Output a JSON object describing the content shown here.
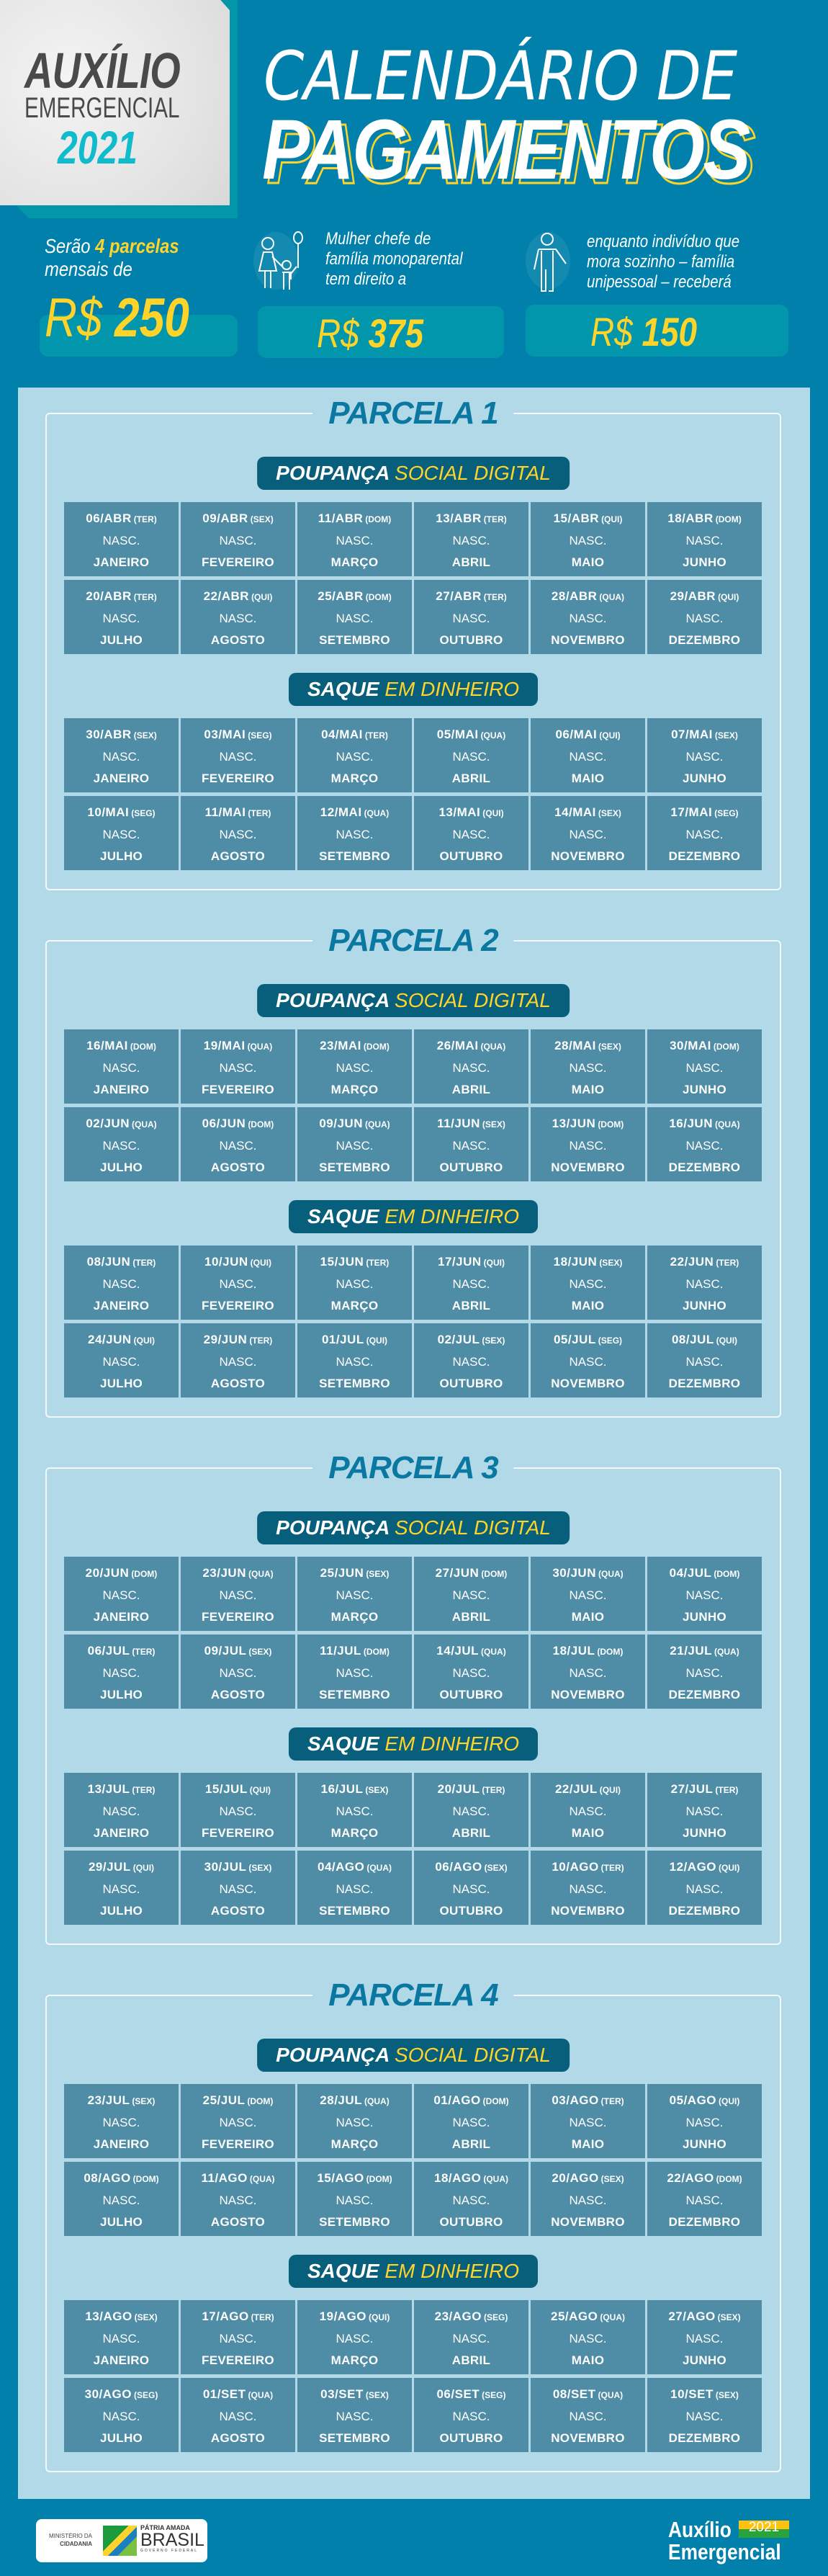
{
  "header": {
    "brand_line1": "AUXÍLIO",
    "brand_line2": "EMERGENCIAL",
    "brand_year": "2021",
    "title_line1": "CALENDÁRIO DE",
    "title_line2": "PAGAMENTOS"
  },
  "summary": {
    "intro_pre": "Serão ",
    "intro_highlight": "4 parcelas",
    "intro_post": "mensais de",
    "main_currency": "R$",
    "main_amount": "250",
    "mother_text": [
      "Mulher chefe de",
      "família monoparental",
      "tem direito a"
    ],
    "mother_currency": "R$",
    "mother_amount": "375",
    "single_text": [
      "enquanto indivíduo que",
      "mora sozinho – família",
      "unipessoal – receberá"
    ],
    "single_currency": "R$",
    "single_amount": "150"
  },
  "labels": {
    "nasc": "NASC.",
    "poupanca_a": "POUPANÇA",
    "poupanca_b": "SOCIAL DIGITAL",
    "saque_a": "SAQUE",
    "saque_b": "EM DINHEIRO"
  },
  "months": [
    "JANEIRO",
    "FEVEREIRO",
    "MARÇO",
    "ABRIL",
    "MAIO",
    "JUNHO",
    "JULHO",
    "AGOSTO",
    "SETEMBRO",
    "OUTUBRO",
    "NOVEMBRO",
    "DEZEMBRO"
  ],
  "parcelas": [
    {
      "title": "PARCELA 1",
      "poupanca": [
        [
          "06/ABR",
          "(TER)"
        ],
        [
          "09/ABR",
          "(SEX)"
        ],
        [
          "11/ABR",
          "(DOM)"
        ],
        [
          "13/ABR",
          "(TER)"
        ],
        [
          "15/ABR",
          "(QUI)"
        ],
        [
          "18/ABR",
          "(DOM)"
        ],
        [
          "20/ABR",
          "(TER)"
        ],
        [
          "22/ABR",
          "(QUI)"
        ],
        [
          "25/ABR",
          "(DOM)"
        ],
        [
          "27/ABR",
          "(TER)"
        ],
        [
          "28/ABR",
          "(QUA)"
        ],
        [
          "29/ABR",
          "(QUI)"
        ]
      ],
      "saque": [
        [
          "30/ABR",
          "(SEX)"
        ],
        [
          "03/MAI",
          "(SEG)"
        ],
        [
          "04/MAI",
          "(TER)"
        ],
        [
          "05/MAI",
          "(QUA)"
        ],
        [
          "06/MAI",
          "(QUI)"
        ],
        [
          "07/MAI",
          "(SEX)"
        ],
        [
          "10/MAI",
          "(SEG)"
        ],
        [
          "11/MAI",
          "(TER)"
        ],
        [
          "12/MAI",
          "(QUA)"
        ],
        [
          "13/MAI",
          "(QUI)"
        ],
        [
          "14/MAI",
          "(SEX)"
        ],
        [
          "17/MAI",
          "(SEG)"
        ]
      ]
    },
    {
      "title": "PARCELA 2",
      "poupanca": [
        [
          "16/MAI",
          "(DOM)"
        ],
        [
          "19/MAI",
          "(QUA)"
        ],
        [
          "23/MAI",
          "(DOM)"
        ],
        [
          "26/MAI",
          "(QUA)"
        ],
        [
          "28/MAI",
          "(SEX)"
        ],
        [
          "30/MAI",
          "(DOM)"
        ],
        [
          "02/JUN",
          "(QUA)"
        ],
        [
          "06/JUN",
          "(DOM)"
        ],
        [
          "09/JUN",
          "(QUA)"
        ],
        [
          "11/JUN",
          "(SEX)"
        ],
        [
          "13/JUN",
          "(DOM)"
        ],
        [
          "16/JUN",
          "(QUA)"
        ]
      ],
      "saque": [
        [
          "08/JUN",
          "(TER)"
        ],
        [
          "10/JUN",
          "(QUI)"
        ],
        [
          "15/JUN",
          "(TER)"
        ],
        [
          "17/JUN",
          "(QUI)"
        ],
        [
          "18/JUN",
          "(SEX)"
        ],
        [
          "22/JUN",
          "(TER)"
        ],
        [
          "24/JUN",
          "(QUI)"
        ],
        [
          "29/JUN",
          "(TER)"
        ],
        [
          "01/JUL",
          "(QUI)"
        ],
        [
          "02/JUL",
          "(SEX)"
        ],
        [
          "05/JUL",
          "(SEG)"
        ],
        [
          "08/JUL",
          "(QUI)"
        ]
      ]
    },
    {
      "title": "PARCELA 3",
      "poupanca": [
        [
          "20/JUN",
          "(DOM)"
        ],
        [
          "23/JUN",
          "(QUA)"
        ],
        [
          "25/JUN",
          "(SEX)"
        ],
        [
          "27/JUN",
          "(DOM)"
        ],
        [
          "30/JUN",
          "(QUA)"
        ],
        [
          "04/JUL",
          "(DOM)"
        ],
        [
          "06/JUL",
          "(TER)"
        ],
        [
          "09/JUL",
          "(SEX)"
        ],
        [
          "11/JUL",
          "(DOM)"
        ],
        [
          "14/JUL",
          "(QUA)"
        ],
        [
          "18/JUL",
          "(DOM)"
        ],
        [
          "21/JUL",
          "(QUA)"
        ]
      ],
      "saque": [
        [
          "13/JUL",
          "(TER)"
        ],
        [
          "15/JUL",
          "(QUI)"
        ],
        [
          "16/JUL",
          "(SEX)"
        ],
        [
          "20/JUL",
          "(TER)"
        ],
        [
          "22/JUL",
          "(QUI)"
        ],
        [
          "27/JUL",
          "(TER)"
        ],
        [
          "29/JUL",
          "(QUI)"
        ],
        [
          "30/JUL",
          "(SEX)"
        ],
        [
          "04/AGO",
          "(QUA)"
        ],
        [
          "06/AGO",
          "(SEX)"
        ],
        [
          "10/AGO",
          "(TER)"
        ],
        [
          "12/AGO",
          "(QUI)"
        ]
      ]
    },
    {
      "title": "PARCELA 4",
      "poupanca": [
        [
          "23/JUL",
          "(SEX)"
        ],
        [
          "25/JUL",
          "(DOM)"
        ],
        [
          "28/JUL",
          "(QUA)"
        ],
        [
          "01/AGO",
          "(DOM)"
        ],
        [
          "03/AGO",
          "(TER)"
        ],
        [
          "05/AGO",
          "(QUI)"
        ],
        [
          "08/AGO",
          "(DOM)"
        ],
        [
          "11/AGO",
          "(QUA)"
        ],
        [
          "15/AGO",
          "(DOM)"
        ],
        [
          "18/AGO",
          "(QUA)"
        ],
        [
          "20/AGO",
          "(SEX)"
        ],
        [
          "22/AGO",
          "(DOM)"
        ]
      ],
      "saque": [
        [
          "13/AGO",
          "(SEX)"
        ],
        [
          "17/AGO",
          "(TER)"
        ],
        [
          "19/AGO",
          "(QUI)"
        ],
        [
          "23/AGO",
          "(SEG)"
        ],
        [
          "25/AGO",
          "(QUA)"
        ],
        [
          "27/AGO",
          "(SEX)"
        ],
        [
          "30/AGO",
          "(SEG)"
        ],
        [
          "01/SET",
          "(QUA)"
        ],
        [
          "03/SET",
          "(SEX)"
        ],
        [
          "06/SET",
          "(SEG)"
        ],
        [
          "08/SET",
          "(QUA)"
        ],
        [
          "10/SET",
          "(SEX)"
        ]
      ]
    }
  ],
  "footer": {
    "ministry_line1": "MINISTÉRIO DA",
    "ministry_line2": "CIDADANIA",
    "gov_line1": "PÁTRIA AMADA",
    "gov_line2": "BRASIL",
    "gov_line3": "GOVERNO FEDERAL",
    "program_line1": "Auxílio",
    "program_year": "2021",
    "program_line2": "Emergencial"
  },
  "colors": {
    "background": "#0180ab",
    "panel": "#b1d9e7",
    "cell": "#4f8ca5",
    "pill": "#075f7c",
    "accent_yellow": "#ffd42a",
    "title_blue": "#0a78a0",
    "teal": "#10bccb"
  }
}
